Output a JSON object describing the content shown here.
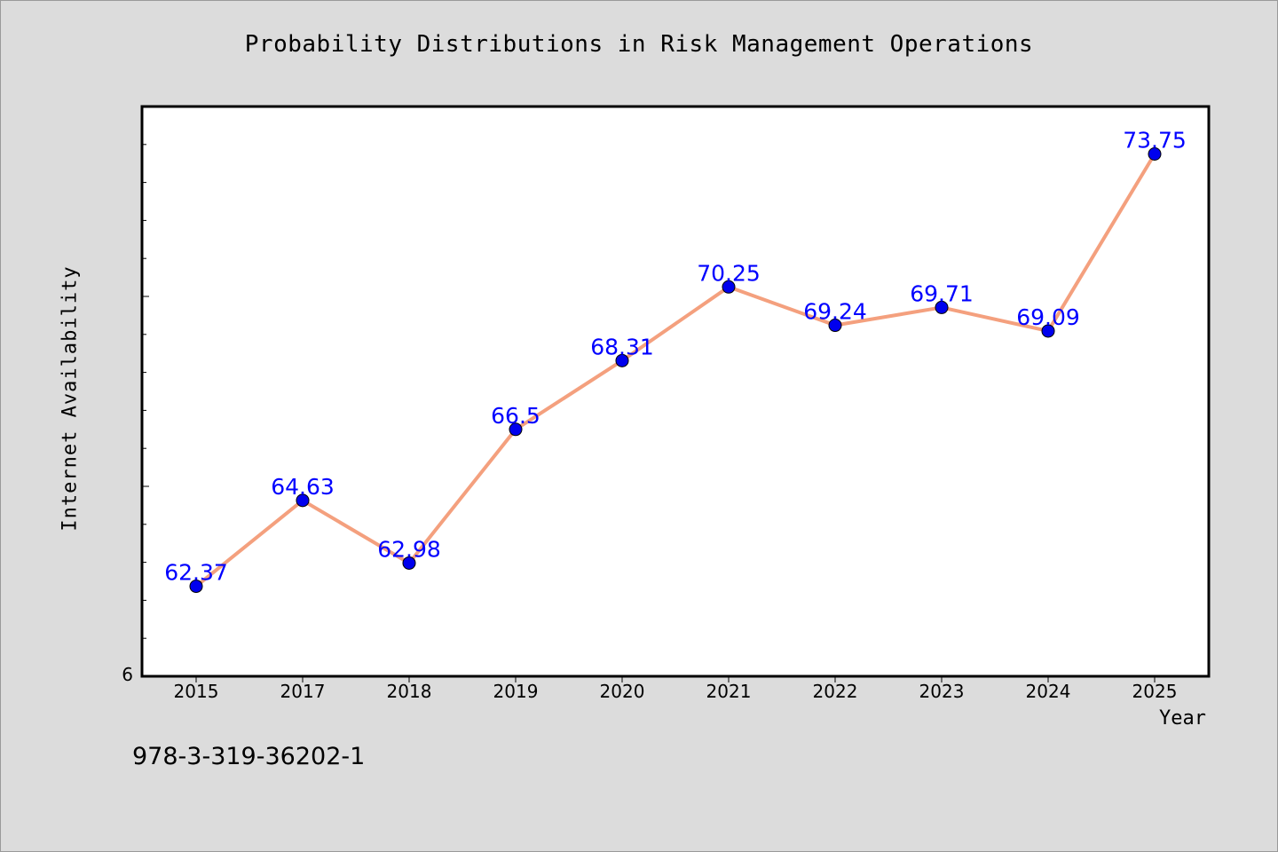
{
  "chart_data": {
    "type": "line",
    "title": "Probability Distributions in Risk Management Operations",
    "xlabel": "Year",
    "ylabel": "Internet Availability",
    "categories": [
      "2015",
      "2017",
      "2018",
      "2019",
      "2020",
      "2021",
      "2022",
      "2023",
      "2024",
      "2025"
    ],
    "series": [
      {
        "values": [
          62.37,
          64.63,
          62.98,
          66.5,
          68.31,
          70.25,
          69.24,
          69.71,
          69.09,
          73.75
        ],
        "line_color": "#f4a07e",
        "marker_color": "#0000ee",
        "label_color": "#0000ff"
      }
    ],
    "y_tick_labels": [
      "6"
    ],
    "ylim": [
      60.0,
      75.0
    ],
    "grid": false,
    "legend": "none"
  },
  "footer": {
    "isbn": "978-3-319-36202-1"
  }
}
